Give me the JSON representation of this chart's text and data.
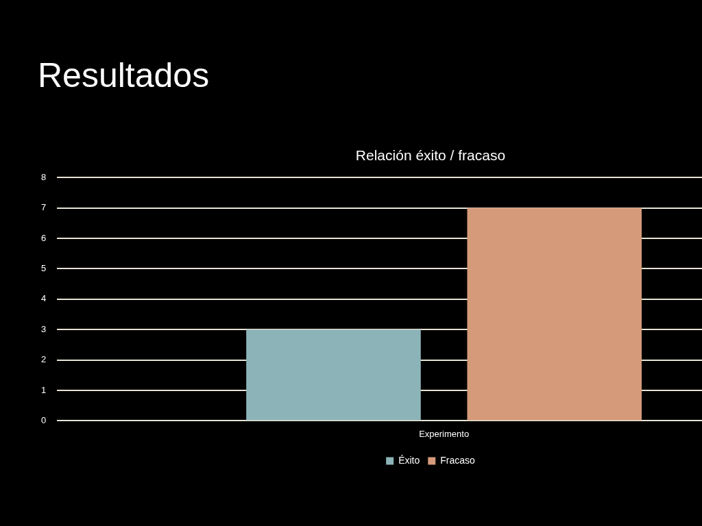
{
  "chart_data": {
    "type": "bar",
    "title": "Resultados",
    "subtitle": "Relación éxito / fracaso",
    "categories": [
      "Experimento"
    ],
    "series": [
      {
        "name": "Éxito",
        "color": "#8cb4b8",
        "values": [
          3
        ]
      },
      {
        "name": "Fracaso",
        "color": "#d49a79",
        "values": [
          7
        ]
      }
    ],
    "ylim": [
      0,
      8
    ],
    "yticks": [
      0,
      1,
      2,
      3,
      4,
      5,
      6,
      7,
      8
    ],
    "grid": "y",
    "legend": "bottom"
  }
}
